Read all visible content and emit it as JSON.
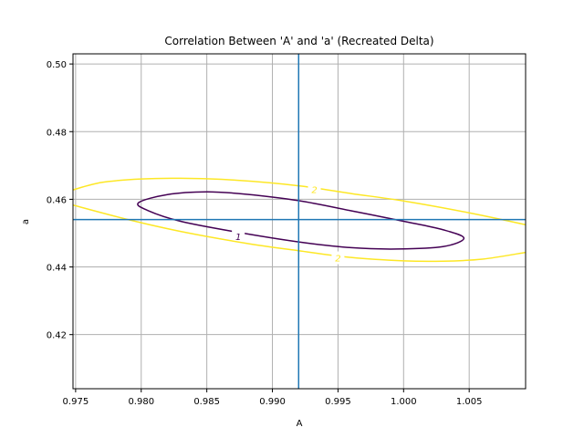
{
  "chart_data": {
    "type": "contour",
    "title": "Correlation Between 'A' and 'a' (Recreated Delta)",
    "xlabel": "A",
    "ylabel": "a",
    "xlim": [
      0.9748,
      1.0093
    ],
    "ylim": [
      0.404,
      0.503
    ],
    "xticks": [
      0.975,
      0.98,
      0.985,
      0.99,
      0.995,
      1.0,
      1.005
    ],
    "xtick_labels": [
      "0.975",
      "0.980",
      "0.985",
      "0.990",
      "0.995",
      "1.000",
      "1.005"
    ],
    "yticks": [
      0.42,
      0.44,
      0.46,
      0.48,
      0.5
    ],
    "ytick_labels": [
      "0.42",
      "0.44",
      "0.46",
      "0.48",
      "0.50"
    ],
    "grid": true,
    "center": {
      "A": 0.992,
      "a": 0.454
    },
    "reference_lines": {
      "vertical": 0.992,
      "horizontal": 0.454,
      "color": "#1f77b4"
    },
    "contours": [
      {
        "level": 1,
        "label": "1",
        "color": "#440154",
        "points": [
          [
            1.0046,
            0.4485
          ],
          [
            1.003,
            0.451
          ],
          [
            1.0,
            0.4535
          ],
          [
            0.996,
            0.4566
          ],
          [
            0.992,
            0.4596
          ],
          [
            0.988,
            0.4615
          ],
          [
            0.985,
            0.4622
          ],
          [
            0.982,
            0.4614
          ],
          [
            0.9798,
            0.459
          ],
          [
            0.9805,
            0.4567
          ],
          [
            0.983,
            0.4535
          ],
          [
            0.987,
            0.4505
          ],
          [
            0.992,
            0.4474
          ],
          [
            0.996,
            0.4457
          ],
          [
            0.9995,
            0.4453
          ],
          [
            1.003,
            0.446
          ],
          [
            1.0046,
            0.4485
          ]
        ],
        "label_positions": [
          [
            0.9874,
            0.449
          ]
        ]
      },
      {
        "level": 2,
        "label": "2",
        "color": "#fde725",
        "points": [
          [
            0.9748,
            0.4628
          ],
          [
            0.977,
            0.465
          ],
          [
            0.98,
            0.466
          ],
          [
            0.983,
            0.4662
          ],
          [
            0.987,
            0.4657
          ],
          [
            0.992,
            0.464
          ],
          [
            0.996,
            0.4617
          ],
          [
            1.0,
            0.4595
          ],
          [
            1.005,
            0.456
          ],
          [
            1.0093,
            0.4525
          ]
        ],
        "points_lower": [
          [
            0.9748,
            0.4583
          ],
          [
            0.979,
            0.454
          ],
          [
            0.983,
            0.4505
          ],
          [
            0.988,
            0.447
          ],
          [
            0.992,
            0.4448
          ],
          [
            0.996,
            0.4428
          ],
          [
            1.0,
            0.4418
          ],
          [
            1.003,
            0.4417
          ],
          [
            1.006,
            0.4423
          ],
          [
            1.0093,
            0.4443
          ]
        ],
        "label_positions": [
          [
            0.9932,
            0.463
          ],
          [
            0.995,
            0.4427
          ]
        ]
      }
    ]
  }
}
